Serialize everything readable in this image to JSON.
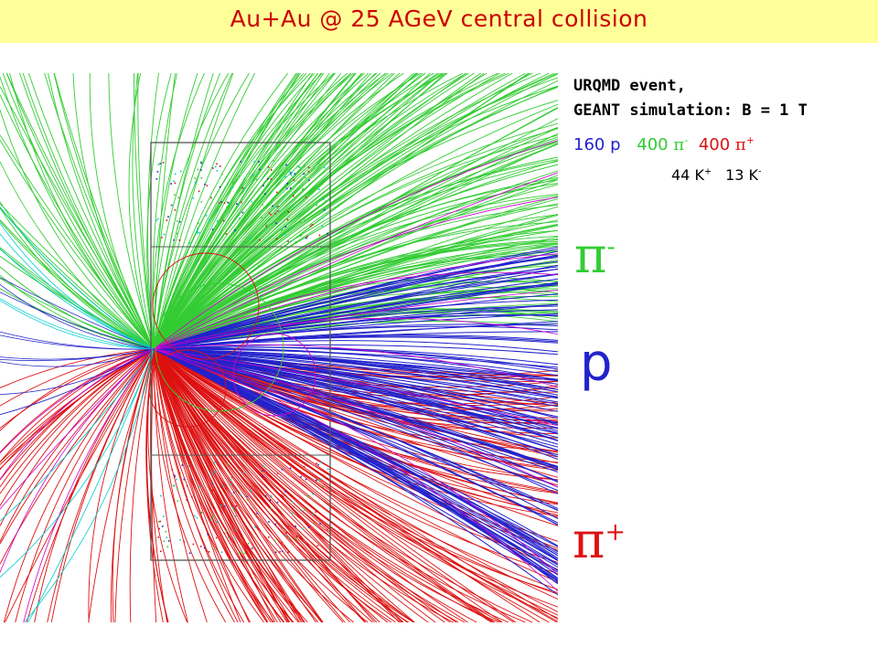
{
  "title": "Au+Au @ 25 AGeV central collision",
  "info": {
    "line1": "URQMD event,",
    "line2": "GEANT simulation: B = 1 T"
  },
  "counts": {
    "proton": "160 p",
    "pi_minus_num": "400",
    "pi_minus_sym": "π",
    "pi_minus_charge": "-",
    "pi_plus_num": "400",
    "pi_plus_sym": "π",
    "pi_plus_charge": "+",
    "kaon_plus_num": "44 K",
    "kaon_plus_charge": "+",
    "kaon_minus_num": "13 K",
    "kaon_minus_charge": "-"
  },
  "labels": {
    "pi_minus_sym": "π",
    "pi_minus_charge": "-",
    "proton": "p",
    "pi_plus_sym": "π",
    "pi_plus_charge": "+"
  },
  "colors": {
    "title_bg": "#ffff99",
    "title_text": "#cc0000",
    "proton": "#2222cc",
    "pi_minus": "#33cc33",
    "pi_plus": "#dd1111",
    "kaon": "#00cccc",
    "extra": "#cc00cc",
    "detector": "#555555"
  }
}
